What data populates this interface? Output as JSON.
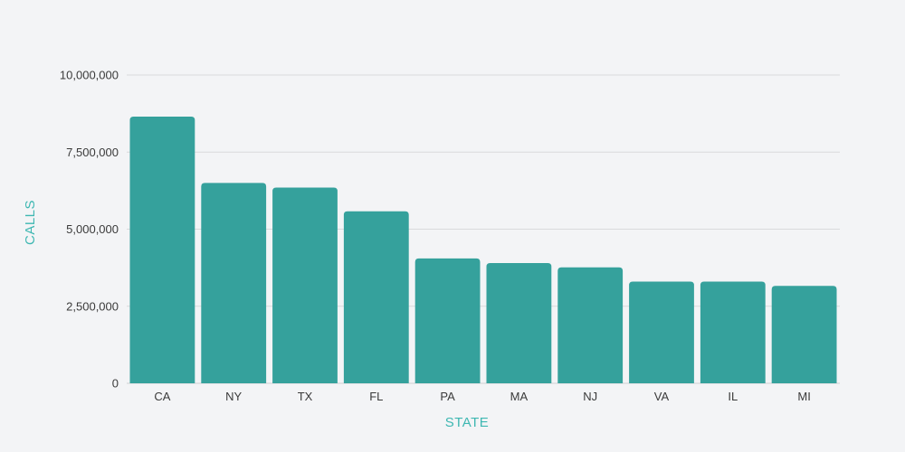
{
  "chart_data": {
    "type": "bar",
    "xlabel": "STATE",
    "ylabel": "CALLS",
    "categories": [
      "CA",
      "NY",
      "TX",
      "FL",
      "PA",
      "MA",
      "NJ",
      "VA",
      "IL",
      "MI"
    ],
    "values": [
      8650000,
      6500000,
      6350000,
      5580000,
      4050000,
      3900000,
      3760000,
      3300000,
      3300000,
      3160000
    ],
    "ylim": [
      0,
      10000000
    ],
    "yticks": [
      0,
      2500000,
      5000000,
      7500000,
      10000000
    ],
    "ytick_labels": [
      "0",
      "2,500,000",
      "5,000,000",
      "7,500,000",
      "10,000,000"
    ],
    "grid": true,
    "legend": "none",
    "colors": {
      "bar": "#35a19c",
      "axis_title": "#3eb7b2"
    }
  }
}
